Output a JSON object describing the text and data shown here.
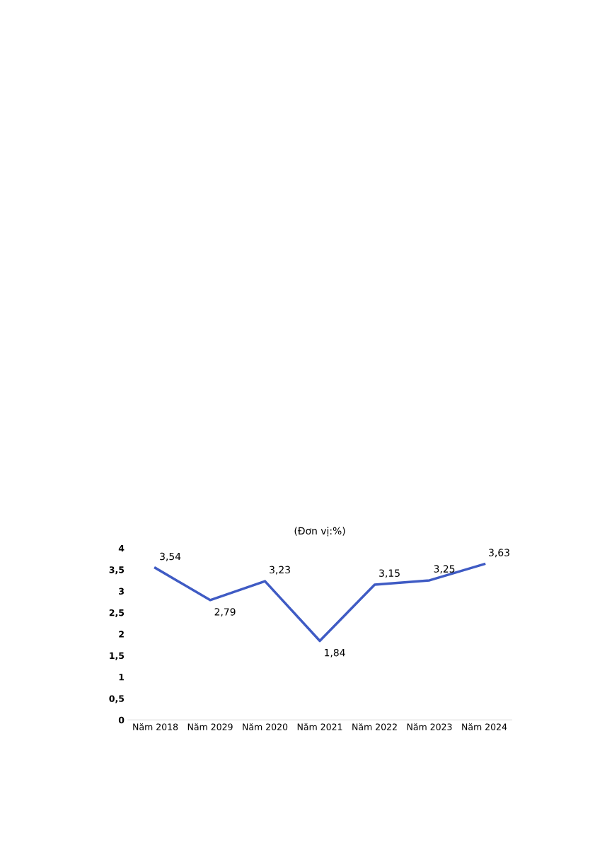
{
  "chart_data": {
    "type": "line",
    "title": "(Đơn vị:%)",
    "categories": [
      "Năm 2018",
      "Năm 2029",
      "Năm 2020",
      "Năm 2021",
      "Năm 2022",
      "Năm 2023",
      "Năm 2024"
    ],
    "series": [
      {
        "color": "#3f5bc4",
        "values": [
          3.54,
          2.79,
          3.23,
          1.84,
          3.15,
          3.25,
          3.63
        ],
        "value_labels": [
          "3,54",
          "2,79",
          "3,23",
          "1,84",
          "3,15",
          "3,25",
          "3,63"
        ]
      }
    ],
    "ylim": [
      0,
      4
    ],
    "yticks": [
      0,
      {
        "value": 0.5,
        "label": "0,5"
      },
      1,
      {
        "value": 1.5,
        "label": "1,5"
      },
      2,
      {
        "value": 2.5,
        "label": "2,5"
      },
      3,
      {
        "value": 3.5,
        "label": "3,5"
      },
      4
    ],
    "grid": false,
    "legend": false,
    "marker": "none",
    "line_style": "solid"
  }
}
